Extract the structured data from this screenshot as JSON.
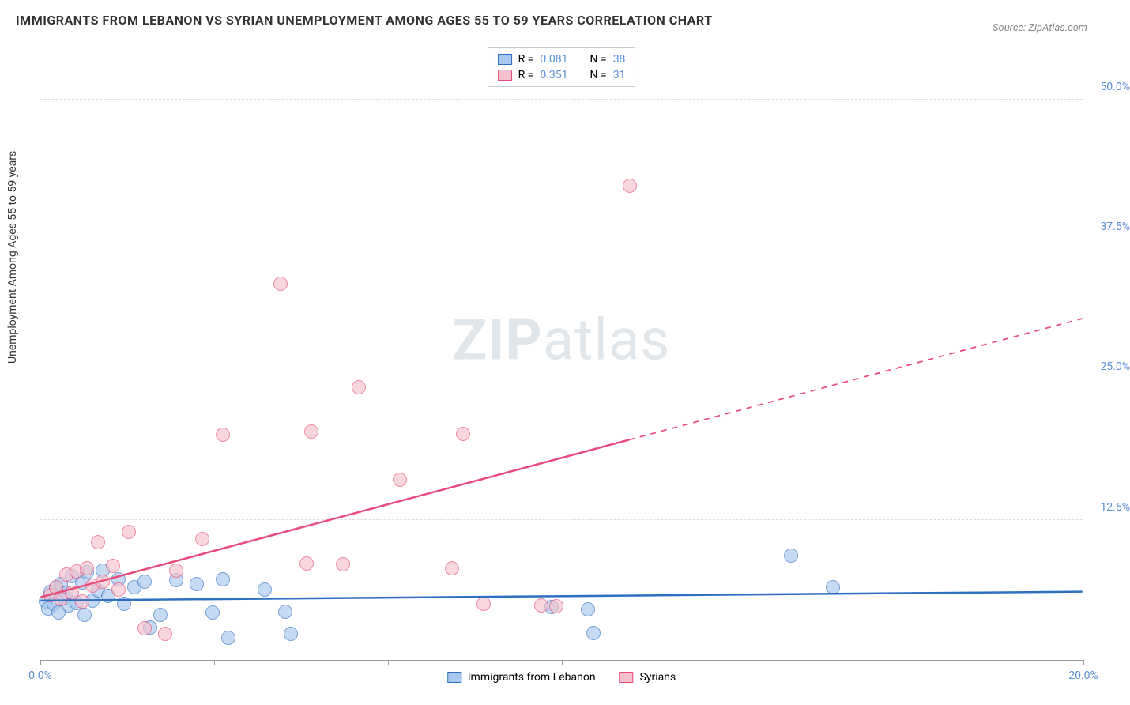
{
  "title": "IMMIGRANTS FROM LEBANON VS SYRIAN UNEMPLOYMENT AMONG AGES 55 TO 59 YEARS CORRELATION CHART",
  "source_label": "Source: ZipAtlas.com",
  "y_axis_label": "Unemployment Among Ages 55 to 59 years",
  "watermark_bold": "ZIP",
  "watermark_rest": "atlas",
  "chart": {
    "type": "scatter",
    "xlim": [
      0,
      20
    ],
    "ylim": [
      0,
      55
    ],
    "x_ticks": [
      0,
      3.33,
      6.67,
      10,
      13.33,
      16.67,
      20
    ],
    "x_tick_labels": {
      "0": "0.0%",
      "20": "20.0%"
    },
    "y_ticks": [
      12.5,
      25.0,
      37.5,
      50.0
    ],
    "y_tick_labels": [
      "12.5%",
      "25.0%",
      "37.5%",
      "50.0%"
    ],
    "grid_color": "#dddddd",
    "axis_color": "#999999",
    "background_color": "#ffffff",
    "point_radius": 9,
    "point_opacity": 0.65,
    "series": [
      {
        "name": "Immigrants from Lebanon",
        "fill": "#a9c8ee",
        "stroke": "#2f6fc1",
        "line_color": "#2f6fc1",
        "line_width": 2.5,
        "R": "0.081",
        "N": "38",
        "trend": {
          "x1": 0,
          "y1": 5.3,
          "x2": 20,
          "y2": 6.1,
          "solid_to_x": 20
        },
        "points": [
          [
            0.1,
            5.2
          ],
          [
            0.15,
            4.6
          ],
          [
            0.2,
            6.1
          ],
          [
            0.25,
            5.0
          ],
          [
            0.3,
            6.4
          ],
          [
            0.35,
            4.2
          ],
          [
            0.4,
            6.8
          ],
          [
            0.45,
            5.5
          ],
          [
            0.5,
            6.0
          ],
          [
            0.55,
            4.9
          ],
          [
            0.6,
            7.5
          ],
          [
            0.7,
            5.1
          ],
          [
            0.8,
            6.9
          ],
          [
            0.85,
            4.0
          ],
          [
            0.9,
            7.8
          ],
          [
            1.0,
            5.3
          ],
          [
            1.1,
            6.2
          ],
          [
            1.2,
            8.0
          ],
          [
            1.3,
            5.7
          ],
          [
            1.5,
            7.2
          ],
          [
            1.6,
            5.0
          ],
          [
            1.8,
            6.5
          ],
          [
            2.0,
            7.0
          ],
          [
            2.1,
            2.9
          ],
          [
            2.3,
            4.0
          ],
          [
            2.6,
            7.1
          ],
          [
            3.0,
            6.8
          ],
          [
            3.3,
            4.2
          ],
          [
            3.5,
            7.2
          ],
          [
            3.6,
            2.0
          ],
          [
            4.3,
            6.3
          ],
          [
            4.7,
            4.3
          ],
          [
            4.8,
            2.3
          ],
          [
            9.8,
            4.7
          ],
          [
            10.5,
            4.5
          ],
          [
            10.6,
            2.4
          ],
          [
            14.4,
            9.3
          ],
          [
            15.2,
            6.5
          ]
        ]
      },
      {
        "name": "Syrians",
        "fill": "#f4c1cd",
        "stroke": "#e94b7a",
        "line_color": "#e94b7a",
        "line_width": 2.5,
        "R": "0.351",
        "N": "31",
        "trend": {
          "x1": 0,
          "y1": 5.6,
          "x2": 20,
          "y2": 30.5,
          "solid_to_x": 11.3
        },
        "points": [
          [
            0.2,
            5.8
          ],
          [
            0.3,
            6.5
          ],
          [
            0.4,
            5.4
          ],
          [
            0.5,
            7.6
          ],
          [
            0.6,
            6.0
          ],
          [
            0.7,
            7.9
          ],
          [
            0.8,
            5.2
          ],
          [
            0.9,
            8.2
          ],
          [
            1.0,
            6.6
          ],
          [
            1.1,
            10.5
          ],
          [
            1.2,
            7.0
          ],
          [
            1.4,
            8.4
          ],
          [
            1.5,
            6.3
          ],
          [
            1.7,
            11.4
          ],
          [
            2.0,
            2.8
          ],
          [
            2.4,
            2.3
          ],
          [
            2.6,
            8.0
          ],
          [
            3.1,
            10.8
          ],
          [
            3.5,
            20.1
          ],
          [
            4.6,
            33.6
          ],
          [
            5.1,
            8.6
          ],
          [
            5.2,
            20.4
          ],
          [
            5.8,
            8.5
          ],
          [
            6.1,
            24.3
          ],
          [
            6.9,
            16.1
          ],
          [
            7.9,
            8.2
          ],
          [
            8.1,
            20.2
          ],
          [
            8.5,
            5.0
          ],
          [
            9.6,
            4.9
          ],
          [
            9.9,
            4.8
          ],
          [
            11.3,
            42.3
          ]
        ]
      }
    ]
  },
  "legend_top": {
    "r_label": "R =",
    "n_label": "N ="
  },
  "legend_bottom": [
    {
      "label": "Immigrants from Lebanon",
      "fill": "#a9c8ee",
      "stroke": "#2f6fc1"
    },
    {
      "label": "Syrians",
      "fill": "#f4c1cd",
      "stroke": "#e94b7a"
    }
  ]
}
